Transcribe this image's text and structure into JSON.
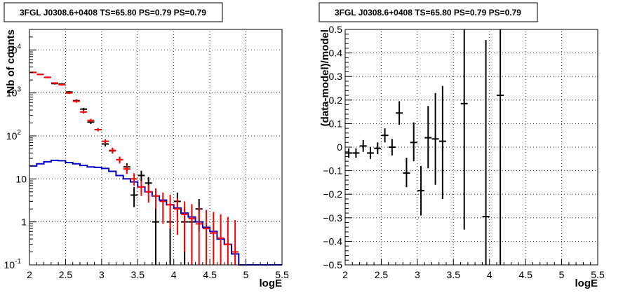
{
  "chart_data": [
    {
      "type": "line",
      "title": "3FGL J0308.6+0408 TS=65.80 PS=0.79 PS=0.79",
      "xlabel": "logE",
      "ylabel": "Nb of counts",
      "xlim": [
        2,
        5.5
      ],
      "ylim": [
        0.1,
        30000
      ],
      "yscale": "log",
      "grid": true,
      "x_ticks": [
        "2",
        "2.5",
        "3",
        "3.5",
        "4",
        "4.5",
        "5",
        "5.5"
      ],
      "y_ticks": [
        {
          "value": 0.1,
          "base": "10",
          "exp": "-1"
        },
        {
          "value": 1,
          "base": "1",
          "exp": ""
        },
        {
          "value": 10,
          "base": "10",
          "exp": ""
        },
        {
          "value": 100,
          "base": "10",
          "exp": "2"
        },
        {
          "value": 1000,
          "base": "10",
          "exp": "3"
        },
        {
          "value": 10000,
          "base": "10",
          "exp": "4"
        }
      ],
      "series": [
        {
          "kind": "step",
          "color": "#0000cc",
          "edges": [
            2,
            2.1,
            2.2,
            2.3,
            2.4,
            2.5,
            2.6,
            2.7,
            2.8,
            2.9,
            3,
            3.1,
            3.2,
            3.3,
            3.4,
            3.5,
            3.6,
            3.7,
            3.8,
            3.9,
            4,
            4.1,
            4.2,
            4.3,
            4.4,
            4.5,
            4.6,
            4.7,
            4.8,
            4.9,
            5,
            5.1,
            5.2,
            5.3,
            5.4,
            5.5
          ],
          "values": [
            20,
            22.5,
            25,
            27,
            26.5,
            24,
            22.5,
            20.5,
            19,
            18.5,
            17.5,
            15,
            12,
            10,
            8.5,
            6.5,
            5,
            4,
            3.2,
            2.5,
            2.1,
            1.6,
            1.3,
            1.0,
            0.75,
            0.6,
            0.4,
            0.3,
            0.18,
            0.1,
            0.1,
            0.1,
            0.1,
            0.1,
            0.1
          ]
        },
        {
          "kind": "errorbars",
          "color": "#000000",
          "points": [
            {
              "x": 2.05,
              "y": 3000,
              "lo": 2900,
              "hi": 3100
            },
            {
              "x": 2.15,
              "y": 2700,
              "lo": 2600,
              "hi": 2800
            },
            {
              "x": 2.25,
              "y": 2300,
              "lo": 2200,
              "hi": 2400
            },
            {
              "x": 2.35,
              "y": 1650,
              "lo": 1570,
              "hi": 1730
            },
            {
              "x": 2.45,
              "y": 1600,
              "lo": 1520,
              "hi": 1680
            },
            {
              "x": 2.55,
              "y": 1050,
              "lo": 990,
              "hi": 1110
            },
            {
              "x": 2.65,
              "y": 660,
              "lo": 610,
              "hi": 710
            },
            {
              "x": 2.75,
              "y": 420,
              "lo": 390,
              "hi": 450
            },
            {
              "x": 2.85,
              "y": 210,
              "lo": 190,
              "hi": 230
            },
            {
              "x": 2.95,
              "y": 140,
              "lo": 128,
              "hi": 152
            },
            {
              "x": 3.05,
              "y": 65,
              "lo": 57,
              "hi": 73
            },
            {
              "x": 3.15,
              "y": 45,
              "lo": 39,
              "hi": 52
            },
            {
              "x": 3.25,
              "y": 28,
              "lo": 23,
              "hi": 33
            },
            {
              "x": 3.35,
              "y": 19,
              "lo": 15,
              "hi": 23
            },
            {
              "x": 3.45,
              "y": 4.2,
              "lo": 2.2,
              "hi": 6.5
            },
            {
              "x": 3.55,
              "y": 12,
              "lo": 8.5,
              "hi": 15.5
            },
            {
              "x": 3.65,
              "y": 8,
              "lo": 5.2,
              "hi": 11
            },
            {
              "x": 3.75,
              "y": 1,
              "lo": 0.1,
              "hi": 2.3
            },
            {
              "x": 3.95,
              "y": 1,
              "lo": 0.1,
              "hi": 2.3
            },
            {
              "x": 4.05,
              "y": 3,
              "lo": 1.3,
              "hi": 4.8
            },
            {
              "x": 4.15,
              "y": 1,
              "lo": 0.1,
              "hi": 2.3
            },
            {
              "x": 4.25,
              "y": 1,
              "lo": 0.1,
              "hi": 2.3
            },
            {
              "x": 4.35,
              "y": 2,
              "lo": 0.6,
              "hi": 3.4
            }
          ]
        },
        {
          "kind": "errorbars",
          "color": "#ff0000",
          "points": [
            {
              "x": 2.05,
              "y": 3000,
              "lo": 2890,
              "hi": 3110
            },
            {
              "x": 2.15,
              "y": 2700,
              "lo": 2600,
              "hi": 2800
            },
            {
              "x": 2.25,
              "y": 2300,
              "lo": 2200,
              "hi": 2400
            },
            {
              "x": 2.35,
              "y": 1700,
              "lo": 1620,
              "hi": 1780
            },
            {
              "x": 2.45,
              "y": 1550,
              "lo": 1470,
              "hi": 1630
            },
            {
              "x": 2.55,
              "y": 1000,
              "lo": 940,
              "hi": 1060
            },
            {
              "x": 2.65,
              "y": 640,
              "lo": 590,
              "hi": 690
            },
            {
              "x": 2.75,
              "y": 360,
              "lo": 330,
              "hi": 390
            },
            {
              "x": 2.85,
              "y": 230,
              "lo": 210,
              "hi": 250
            },
            {
              "x": 2.95,
              "y": 140,
              "lo": 128,
              "hi": 152
            },
            {
              "x": 3.05,
              "y": 75,
              "lo": 66,
              "hi": 84
            },
            {
              "x": 3.15,
              "y": 46,
              "lo": 40,
              "hi": 53
            },
            {
              "x": 3.25,
              "y": 28,
              "lo": 23,
              "hi": 33
            },
            {
              "x": 3.35,
              "y": 17,
              "lo": 13,
              "hi": 21
            },
            {
              "x": 3.45,
              "y": 10,
              "lo": 7,
              "hi": 13.5
            },
            {
              "x": 3.55,
              "y": 6.5,
              "lo": 4,
              "hi": 9
            },
            {
              "x": 3.65,
              "y": 5,
              "lo": 2.8,
              "hi": 7.2
            },
            {
              "x": 3.75,
              "y": 4,
              "lo": 2,
              "hi": 6
            },
            {
              "x": 3.85,
              "y": 3,
              "lo": 0.9,
              "hi": 4.8
            },
            {
              "x": 3.95,
              "y": 2.5,
              "lo": 0.7,
              "hi": 4.3
            },
            {
              "x": 4.05,
              "y": 2,
              "lo": 0.5,
              "hi": 3.6
            },
            {
              "x": 4.15,
              "y": 1.5,
              "lo": 0.2,
              "hi": 3.0
            },
            {
              "x": 4.25,
              "y": 1.2,
              "lo": 0.1,
              "hi": 2.6
            },
            {
              "x": 4.35,
              "y": 0.9,
              "lo": 0.1,
              "hi": 2.2
            },
            {
              "x": 4.45,
              "y": 0.7,
              "lo": 0.1,
              "hi": 1.9
            },
            {
              "x": 4.55,
              "y": 0.55,
              "lo": 0.1,
              "hi": 1.7
            },
            {
              "x": 4.65,
              "y": 0.42,
              "lo": 0.1,
              "hi": 1.5
            },
            {
              "x": 4.75,
              "y": 0.3,
              "lo": 0.1,
              "hi": 1.3
            },
            {
              "x": 4.85,
              "y": 0.2,
              "lo": 0.1,
              "hi": 1.1
            }
          ]
        }
      ]
    },
    {
      "type": "scatter",
      "title": "3FGL J0308.6+0408 TS=65.80 PS=0.79 PS=0.79",
      "xlabel": "logE",
      "ylabel": "(data-model)/model",
      "xlim": [
        2,
        5.5
      ],
      "ylim": [
        -0.5,
        0.5
      ],
      "grid": true,
      "x_ticks": [
        "2",
        "2.5",
        "3",
        "3.5",
        "4",
        "4.5",
        "5",
        "5.5"
      ],
      "y_ticks": [
        "-0.5",
        "-0.4",
        "-0.3",
        "-0.2",
        "-0.1",
        "0",
        "0.1",
        "0.2",
        "0.3",
        "0.4",
        "0.5"
      ],
      "series": [
        {
          "kind": "errorbars",
          "color": "#000000",
          "points": [
            {
              "x": 2.05,
              "y": -0.025,
              "lo": -0.045,
              "hi": -0.005
            },
            {
              "x": 2.15,
              "y": -0.025,
              "lo": -0.045,
              "hi": -0.005
            },
            {
              "x": 2.25,
              "y": 0.005,
              "lo": -0.02,
              "hi": 0.03
            },
            {
              "x": 2.35,
              "y": -0.025,
              "lo": -0.05,
              "hi": 0.0
            },
            {
              "x": 2.45,
              "y": -0.005,
              "lo": -0.03,
              "hi": 0.02
            },
            {
              "x": 2.55,
              "y": 0.05,
              "lo": 0.02,
              "hi": 0.08
            },
            {
              "x": 2.65,
              "y": 0.0,
              "lo": -0.035,
              "hi": 0.035
            },
            {
              "x": 2.75,
              "y": 0.145,
              "lo": 0.095,
              "hi": 0.195
            },
            {
              "x": 2.85,
              "y": -0.11,
              "lo": -0.17,
              "hi": -0.045
            },
            {
              "x": 2.95,
              "y": 0.02,
              "lo": -0.06,
              "hi": 0.105
            },
            {
              "x": 3.05,
              "y": -0.185,
              "lo": -0.29,
              "hi": -0.08
            },
            {
              "x": 3.15,
              "y": 0.04,
              "lo": -0.09,
              "hi": 0.175
            },
            {
              "x": 3.25,
              "y": 0.035,
              "lo": -0.16,
              "hi": 0.23
            },
            {
              "x": 3.35,
              "y": 0.025,
              "lo": -0.22,
              "hi": 0.26
            },
            {
              "x": 3.65,
              "y": 0.185,
              "lo": -0.35,
              "hi": 0.5
            },
            {
              "x": 3.95,
              "y": -0.295,
              "lo": -0.5,
              "hi": 0.455
            },
            {
              "x": 4.15,
              "y": 0.22,
              "lo": -0.5,
              "hi": 0.5
            }
          ]
        }
      ]
    }
  ]
}
